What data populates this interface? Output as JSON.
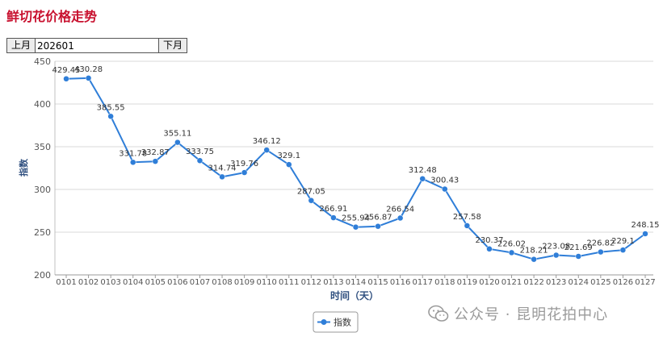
{
  "page": {
    "title": "鲜切花价格走势",
    "prev_label": "上月",
    "next_label": "下月",
    "month_value": "202601",
    "watermark": "公众号 · 昆明花拍中心"
  },
  "colors": {
    "title": "#c8102e",
    "series": "#2f7ed8",
    "grid": "#d8d8d8"
  },
  "chart_data": {
    "type": "line",
    "title": "",
    "xlabel": "时间（天）",
    "ylabel": "指数",
    "ylim": [
      200,
      450
    ],
    "yticks": [
      200,
      250,
      300,
      350,
      400,
      450
    ],
    "grid": true,
    "legend_position": "bottom-center",
    "x": [
      "0101",
      "0102",
      "0103",
      "0104",
      "0105",
      "0106",
      "0107",
      "0108",
      "0109",
      "0110",
      "0111",
      "0112",
      "0113",
      "0114",
      "0115",
      "0116",
      "0117",
      "0118",
      "0119",
      "0120",
      "0121",
      "0122",
      "0123",
      "0124",
      "0125",
      "0126",
      "0127"
    ],
    "series": [
      {
        "name": "指数",
        "values": [
          429.45,
          430.28,
          385.55,
          331.78,
          332.87,
          355.11,
          333.75,
          314.74,
          319.76,
          346.12,
          329.1,
          287.05,
          266.91,
          255.94,
          256.87,
          266.54,
          312.48,
          300.43,
          257.58,
          230.37,
          226.02,
          218.21,
          223.08,
          221.69,
          226.82,
          229.1,
          248.15
        ],
        "labels": [
          "429.45",
          "430.28",
          "385.55",
          "331.78",
          "332.87",
          "355.11",
          "333.75",
          "314.74",
          "319.76",
          "346.12",
          "329.1",
          "287.05",
          "266.91",
          "255.94",
          "256.87",
          "266.54",
          "312.48",
          "300.43",
          "257.58",
          "230.37",
          "226.02",
          "218.21",
          "223.08",
          "221.69",
          "226.82",
          "229.1",
          "248.15"
        ]
      }
    ]
  }
}
